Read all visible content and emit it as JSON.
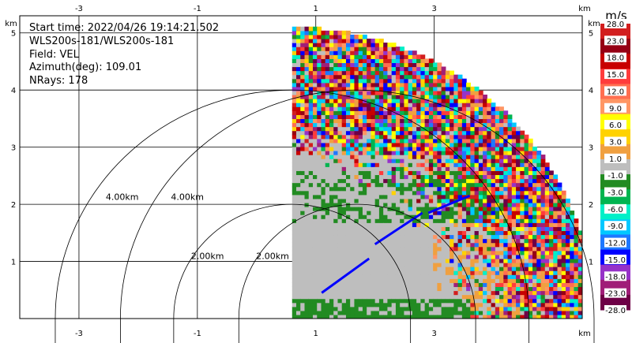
{
  "info": {
    "lines": [
      "Start time: 2022/04/26 19:14:21.502",
      "WLS200s-181/WLS200s-181",
      "Field: VEL",
      "Azimuth(deg): 109.01",
      "NRays: 178"
    ]
  },
  "chart_data": {
    "type": "heatmap",
    "title": "",
    "xlabel": "km",
    "ylabel": "km",
    "xlim": [
      -4.0,
      5.5
    ],
    "ylim": [
      0,
      5.3
    ],
    "x_ticks": [
      -3,
      -1,
      1,
      3
    ],
    "y_ticks": [
      1,
      2,
      3,
      4,
      5
    ],
    "grid": true,
    "scan": {
      "center_km": [
        0.6,
        0
      ],
      "max_range_km": 5.1,
      "sector_deg": [
        0,
        90
      ]
    },
    "range_rings": [
      {
        "label": "2.00km",
        "radius_km": 2.0
      },
      {
        "label": "4.00km",
        "radius_km": 4.0
      },
      {
        "label": "2.00km",
        "radius_km": 2.0,
        "center_km": [
          1.7,
          0
        ]
      },
      {
        "label": "4.00km",
        "radius_km": 4.0,
        "center_km": [
          1.7,
          0
        ]
      }
    ],
    "colorbar": {
      "unit": "m/s",
      "levels": [
        "28.0",
        "23.0",
        "18.0",
        "15.0",
        "12.0",
        "9.0",
        "6.0",
        "3.0",
        "1.0",
        "-1.0",
        "-3.0",
        "-6.0",
        "-9.0",
        "-12.0",
        "-15.0",
        "-18.0",
        "-23.0",
        "-28.0"
      ],
      "colors": [
        "#d21e1e",
        "#960014",
        "#c80000",
        "#ff3c3c",
        "#ff6e50",
        "#ff9664",
        "#ffff00",
        "#ffd200",
        "#f0a040",
        "#bebebe",
        "#228b22",
        "#00b450",
        "#00f0c8",
        "#00c8ff",
        "#1e78ff",
        "#0000ff",
        "#9632c8",
        "#a01e78",
        "#6e0046"
      ]
    }
  }
}
